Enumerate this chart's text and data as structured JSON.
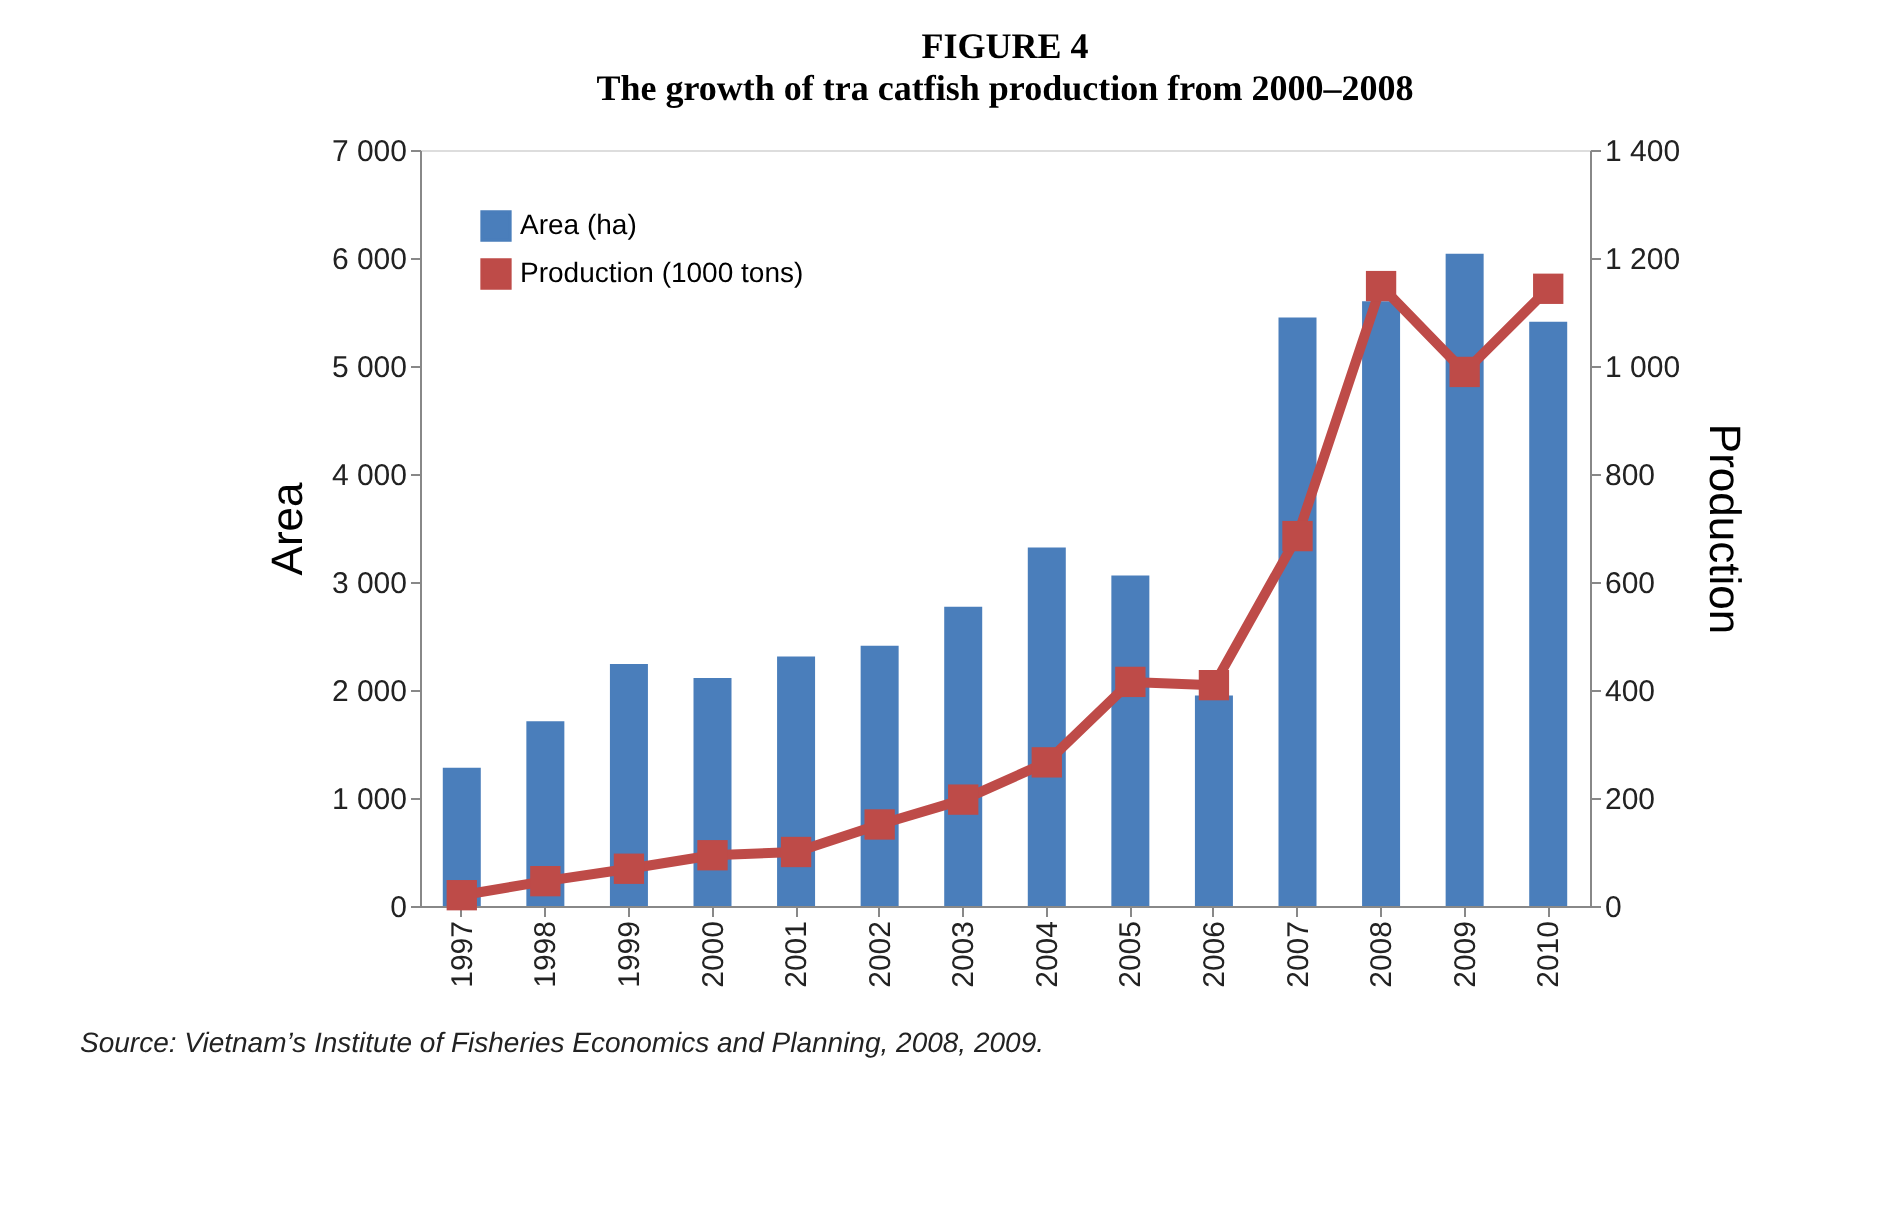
{
  "chart_data": {
    "type": "bar",
    "title": "FIGURE 4",
    "subtitle": "The growth of tra catfish production from 2000–2008",
    "ylabel": "Area",
    "y2label": "Production",
    "categories": [
      "1997",
      "1998",
      "1999",
      "2000",
      "2001",
      "2002",
      "2003",
      "2004",
      "2005",
      "2006",
      "2007",
      "2008",
      "2009",
      "2010"
    ],
    "series": [
      {
        "name": "Area (ha)",
        "color": "#4a7ebb",
        "values": [
          1280,
          1710,
          2240,
          2110,
          2310,
          2410,
          2770,
          3320,
          3060,
          1950,
          5450,
          5600,
          6040,
          5410
        ]
      },
      {
        "name": "Production  (1000 tons)",
        "type": "line",
        "axis": "y2",
        "color": "#be4b48",
        "marker": "square",
        "values": [
          20,
          46,
          69,
          94,
          100,
          151,
          197,
          266,
          415,
          409,
          685,
          1148,
          989,
          1143
        ]
      }
    ],
    "ylim": [
      0,
      7000
    ],
    "yticks": [
      {
        "value": 0,
        "label": "0"
      },
      {
        "value": 1000,
        "label": "1 000"
      },
      {
        "value": 2000,
        "label": "2 000"
      },
      {
        "value": 3000,
        "label": "3 000"
      },
      {
        "value": 4000,
        "label": "4 000"
      },
      {
        "value": 5000,
        "label": "5 000"
      },
      {
        "value": 6000,
        "label": "6 000"
      },
      {
        "value": 7000,
        "label": "7 000"
      }
    ],
    "y2lim": [
      0,
      1400
    ],
    "y2ticks": [
      0,
      200,
      400,
      600,
      800,
      {
        "value": 1000,
        "label": "1 000"
      },
      {
        "value": 1200,
        "label": "1 200"
      },
      {
        "value": 1400,
        "label": "1 400"
      }
    ],
    "grid": false,
    "legend": "top left",
    "annotations": [
      "Source: Vietnam’s Institute of Fisheries Economics and Planning, 2008, 2009."
    ]
  }
}
